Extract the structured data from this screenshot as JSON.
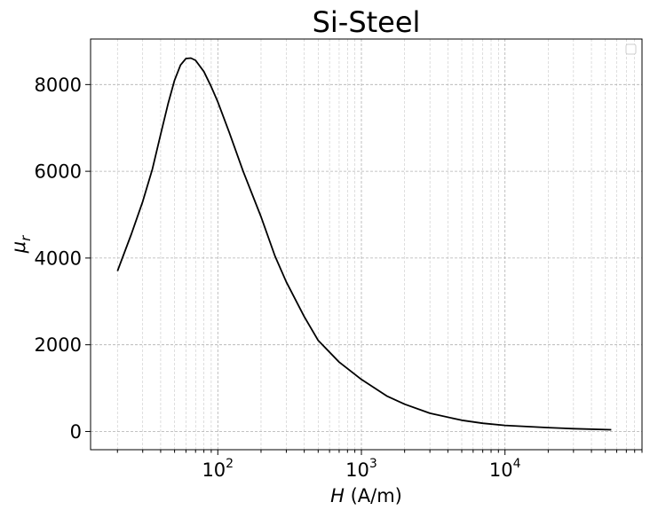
{
  "chart_data": {
    "type": "line",
    "title": "Si-Steel",
    "xlabel_italic": "H",
    "xlabel_unit": " (A/m)",
    "ylabel_symbol": "μ",
    "ylabel_subscript": "r",
    "xscale": "log",
    "xlim": [
      13,
      90000
    ],
    "ylim": [
      -420,
      9050
    ],
    "grid": true,
    "legend": "top-right, empty",
    "yticks": [
      0,
      2000,
      4000,
      6000,
      8000
    ],
    "xticks": [
      {
        "value": 100,
        "base": "10",
        "exp": "2"
      },
      {
        "value": 1000,
        "base": "10",
        "exp": "3"
      },
      {
        "value": 10000,
        "base": "10",
        "exp": "4"
      }
    ],
    "series": [
      {
        "color": "#000000",
        "x": [
          20,
          25,
          30,
          35,
          40,
          45,
          50,
          55,
          60,
          65,
          70,
          80,
          90,
          100,
          120,
          150,
          200,
          250,
          300,
          400,
          500,
          700,
          1000,
          1500,
          2000,
          3000,
          5000,
          7000,
          10000,
          20000,
          30000,
          55000
        ],
        "y": [
          3700,
          4550,
          5300,
          6050,
          6850,
          7550,
          8100,
          8450,
          8600,
          8610,
          8560,
          8300,
          7950,
          7600,
          6900,
          6000,
          4950,
          4050,
          3450,
          2650,
          2100,
          1600,
          1200,
          820,
          630,
          420,
          260,
          190,
          140,
          90,
          65,
          40
        ]
      }
    ]
  }
}
